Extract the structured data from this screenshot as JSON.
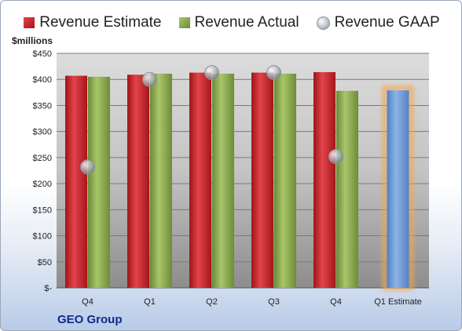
{
  "legend": {
    "estimate": "Revenue Estimate",
    "actual": "Revenue Actual",
    "gaap": "Revenue GAAP"
  },
  "unit_label": "$millions",
  "company": "GEO Group",
  "colors": {
    "estimate": "#c8232a",
    "actual": "#8fac4f",
    "gaap": "#b8bcc6",
    "forecast": "#6f9fd8",
    "forecast_glow": "#f5a64a"
  },
  "chart_data": {
    "type": "bar",
    "categories": [
      "Q4",
      "Q1",
      "Q2",
      "Q3",
      "Q4",
      "Q1 Estimate"
    ],
    "series": [
      {
        "name": "Revenue Estimate",
        "values": [
          407,
          409,
          413,
          413,
          414,
          null
        ]
      },
      {
        "name": "Revenue Actual",
        "values": [
          405,
          411,
          411,
          411,
          378,
          379
        ]
      },
      {
        "name": "Revenue GAAP",
        "values": [
          232,
          400,
          413,
          413,
          252,
          null
        ]
      }
    ],
    "ylim": [
      0,
      450
    ],
    "yticks": [
      0,
      50,
      100,
      150,
      200,
      250,
      300,
      350,
      400,
      450
    ],
    "ytick_labels": [
      "$-",
      "$50",
      "$100",
      "$150",
      "$200",
      "$250",
      "$300",
      "$350",
      "$400",
      "$450"
    ],
    "ylabel": "$millions",
    "xlabel": "",
    "grid": true,
    "legend_position": "top"
  }
}
